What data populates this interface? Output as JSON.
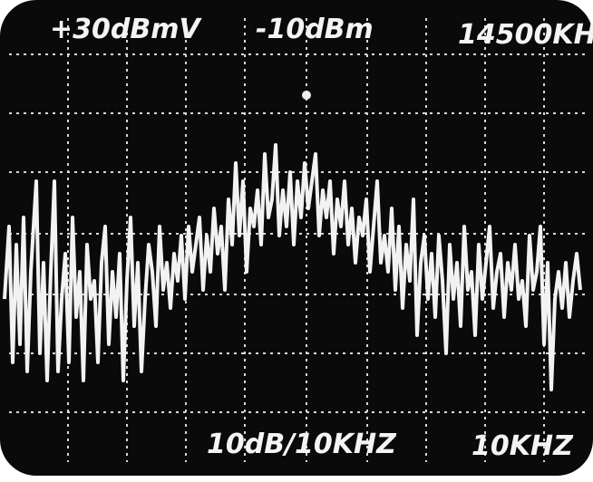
{
  "screen": {
    "top_left": "+30dBmV",
    "top_center": "-10dBm",
    "top_right": "14500KH",
    "bottom_center": "10dB/10KHZ",
    "bottom_right": "10KHZ"
  }
}
